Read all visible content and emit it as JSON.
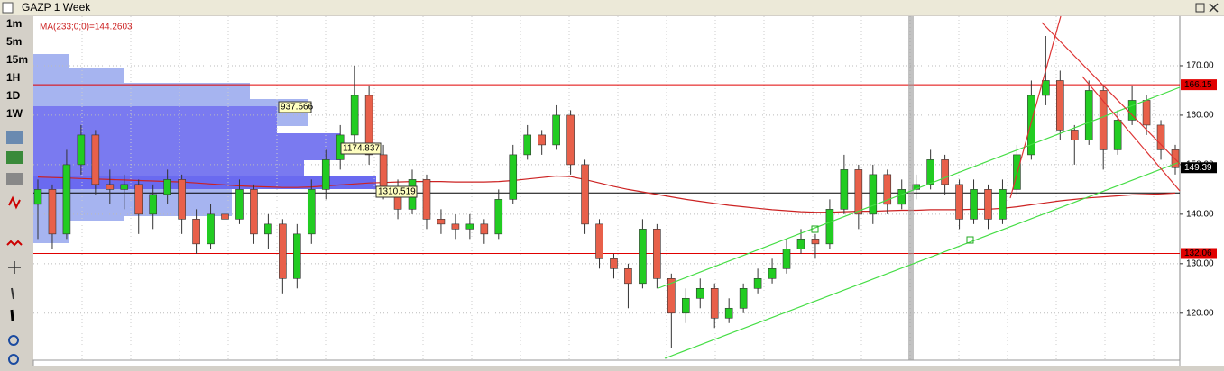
{
  "toolbar": {
    "timeframes": [
      "1m",
      "5m",
      "15m",
      "1H",
      "1D",
      "1W"
    ]
  },
  "chart_data": {
    "type": "candlestick",
    "title": "GAZP 1 Week",
    "ma_label": "MA(233;0;0)=144.2603",
    "profile_labels": [
      "937.666",
      "1174.837",
      "1310.519"
    ],
    "ylim": [
      110.5,
      180
    ],
    "yticks": [
      {
        "value": 120,
        "label": "120.00"
      },
      {
        "value": 130,
        "label": "130.00"
      },
      {
        "value": 140,
        "label": "140.00"
      },
      {
        "value": 150,
        "label": "150.00"
      },
      {
        "value": 160,
        "label": "160.00"
      },
      {
        "value": 170,
        "label": "170.00"
      }
    ],
    "grid": true,
    "up_color": "#22cc22",
    "down_color": "#e8604a",
    "ma_color": "#cc2222",
    "levels": [
      {
        "value": 166.15,
        "color": "#e00000"
      },
      {
        "value": 132.06,
        "color": "#e00000"
      },
      {
        "value": 144.3,
        "color": "#000000"
      }
    ],
    "candles": [
      [
        142,
        147,
        135,
        145
      ],
      [
        145,
        146,
        133,
        136
      ],
      [
        136,
        153,
        135,
        150
      ],
      [
        150,
        158,
        148,
        156
      ],
      [
        156,
        157,
        144,
        146
      ],
      [
        146,
        149,
        142,
        145
      ],
      [
        145,
        148,
        141,
        146
      ],
      [
        146,
        147,
        136,
        140
      ],
      [
        140,
        146,
        137,
        144
      ],
      [
        144,
        149,
        142,
        147
      ],
      [
        147,
        148,
        136,
        139
      ],
      [
        139,
        141,
        132,
        134
      ],
      [
        134,
        142,
        133,
        140
      ],
      [
        140,
        143,
        137,
        139
      ],
      [
        139,
        147,
        138,
        145
      ],
      [
        145,
        146,
        134,
        136
      ],
      [
        136,
        140,
        133,
        138
      ],
      [
        138,
        139,
        124,
        127
      ],
      [
        127,
        138,
        125,
        136
      ],
      [
        136,
        147,
        134,
        145
      ],
      [
        145,
        153,
        143,
        151
      ],
      [
        151,
        158,
        149,
        156
      ],
      [
        156,
        170,
        154,
        164
      ],
      [
        164,
        166,
        150,
        152
      ],
      [
        152,
        154,
        143,
        145
      ],
      [
        145,
        147,
        139,
        141
      ],
      [
        141,
        149,
        140,
        147
      ],
      [
        147,
        148,
        137,
        139
      ],
      [
        139,
        141,
        136,
        138
      ],
      [
        138,
        140,
        135,
        137
      ],
      [
        137,
        140,
        135,
        138
      ],
      [
        138,
        139,
        134,
        136
      ],
      [
        136,
        145,
        135,
        143
      ],
      [
        143,
        154,
        142,
        152
      ],
      [
        152,
        158,
        151,
        156
      ],
      [
        156,
        157,
        152,
        154
      ],
      [
        154,
        162,
        153,
        160
      ],
      [
        160,
        161,
        148,
        150
      ],
      [
        150,
        151,
        136,
        138
      ],
      [
        138,
        139,
        129,
        131
      ],
      [
        131,
        132,
        127,
        129
      ],
      [
        129,
        130,
        121,
        126
      ],
      [
        126,
        139,
        125,
        137
      ],
      [
        137,
        138,
        125,
        127
      ],
      [
        127,
        128,
        113,
        120
      ],
      [
        120,
        125,
        118,
        123
      ],
      [
        123,
        127,
        121,
        125
      ],
      [
        125,
        126,
        117,
        119
      ],
      [
        119,
        123,
        118,
        121
      ],
      [
        121,
        126,
        120,
        125
      ],
      [
        125,
        129,
        124,
        127
      ],
      [
        127,
        131,
        126,
        129
      ],
      [
        129,
        135,
        128,
        133
      ],
      [
        133,
        137,
        132,
        135
      ],
      [
        135,
        136,
        131,
        134
      ],
      [
        134,
        143,
        133,
        141
      ],
      [
        141,
        152,
        140,
        149
      ],
      [
        149,
        150,
        137,
        140
      ],
      [
        140,
        150,
        138,
        148
      ],
      [
        148,
        149,
        140,
        142
      ],
      [
        142,
        147,
        141,
        145
      ],
      [
        145,
        148,
        143,
        146
      ],
      [
        146,
        153,
        145,
        151
      ],
      [
        151,
        152,
        144,
        146
      ],
      [
        146,
        147,
        137,
        139
      ],
      [
        139,
        147,
        138,
        145
      ],
      [
        145,
        146,
        137,
        139
      ],
      [
        139,
        147,
        138,
        145
      ],
      [
        145,
        154,
        144,
        152
      ],
      [
        152,
        167,
        151,
        164
      ],
      [
        164,
        176,
        162,
        167
      ],
      [
        167,
        169,
        155,
        157
      ],
      [
        157,
        158,
        150,
        155
      ],
      [
        155,
        167,
        154,
        165
      ],
      [
        165,
        166,
        149,
        153
      ],
      [
        153,
        161,
        152,
        159
      ],
      [
        159,
        166,
        158,
        163
      ],
      [
        163,
        164,
        156,
        158
      ],
      [
        158,
        159,
        151,
        153
      ],
      [
        153,
        154,
        148,
        149.39
      ]
    ],
    "ma": [
      147.5,
      147.4,
      147.3,
      147.2,
      147.1,
      147,
      146.9,
      146.8,
      146.7,
      146.6,
      146.5,
      146.3,
      146.1,
      145.9,
      145.7,
      145.6,
      145.5,
      145.4,
      145.4,
      145.5,
      145.7,
      145.9,
      146.1,
      146.3,
      146.4,
      146.5,
      146.6,
      146.6,
      146.6,
      146.5,
      146.5,
      146.5,
      146.6,
      146.8,
      147.1,
      147.4,
      147.7,
      147.6,
      147,
      146.3,
      145.6,
      145,
      144.5,
      144,
      143.5,
      143,
      142.6,
      142.2,
      141.8,
      141.5,
      141.2,
      140.9,
      140.7,
      140.5,
      140.4,
      140.4,
      140.5,
      140.6,
      140.6,
      140.7,
      140.8,
      140.8,
      140.9,
      140.9,
      140.9,
      141,
      141,
      141.2,
      141.5,
      141.9,
      142.3,
      142.7,
      143,
      143.3,
      143.5,
      143.7,
      143.9,
      144,
      144.1,
      144.2603
    ]
  }
}
